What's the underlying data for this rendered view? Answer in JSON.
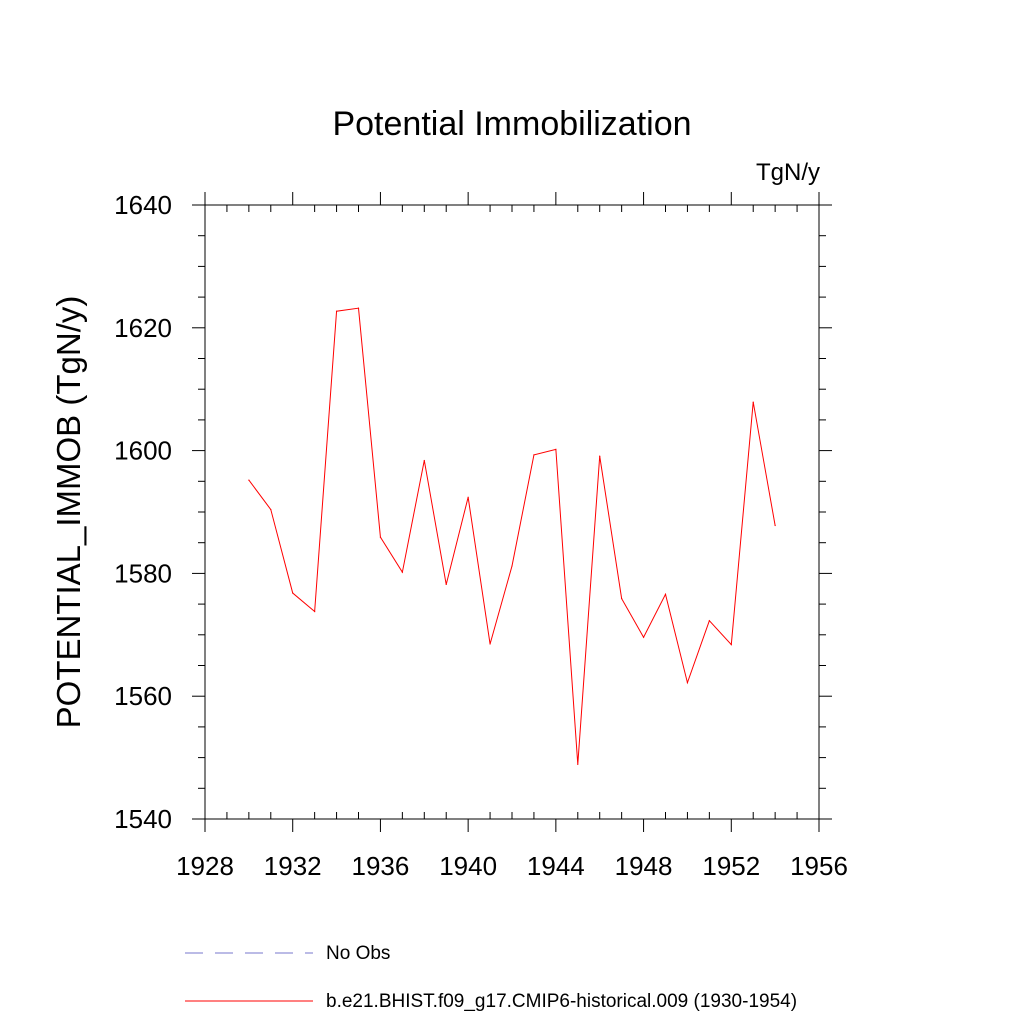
{
  "chart_data": {
    "type": "line",
    "title": "Potential Immobilization",
    "units_label": "TgN/y",
    "ylabel": "POTENTIAL_IMMOB  (TgN/y)",
    "xlabel": "",
    "xlim": [
      1928,
      1956
    ],
    "ylim": [
      1540,
      1640
    ],
    "x_ticks": [
      1928,
      1932,
      1936,
      1940,
      1944,
      1948,
      1952,
      1956
    ],
    "y_ticks": [
      1540,
      1560,
      1580,
      1600,
      1620,
      1640
    ],
    "x_minor_step": 1,
    "y_minor_step": 5,
    "grid": false,
    "legend_position": "bottom",
    "series": [
      {
        "name": "b.e21.BHIST.f09_g17.CMIP6-historical.009 (1930-1954)",
        "color": "#ff0000",
        "style": "solid",
        "x": [
          1930,
          1931,
          1932,
          1933,
          1934,
          1935,
          1936,
          1937,
          1938,
          1939,
          1940,
          1941,
          1942,
          1943,
          1944,
          1945,
          1946,
          1947,
          1948,
          1949,
          1950,
          1951,
          1952,
          1953,
          1954
        ],
        "values": [
          1595.2,
          1590.4,
          1576.8,
          1573.8,
          1622.7,
          1623.2,
          1585.9,
          1580.2,
          1598.4,
          1578.2,
          1592.4,
          1568.5,
          1581.2,
          1599.3,
          1600.2,
          1548.9,
          1599.1,
          1575.9,
          1569.6,
          1576.6,
          1562.2,
          1572.3,
          1568.4,
          1607.9,
          1587.8
        ]
      }
    ],
    "legend": [
      {
        "label": "No Obs",
        "color": "#7777cc",
        "style": "dashed"
      },
      {
        "label": "b.e21.BHIST.f09_g17.CMIP6-historical.009 (1930-1954)",
        "color": "#ff0000",
        "style": "solid"
      }
    ]
  }
}
